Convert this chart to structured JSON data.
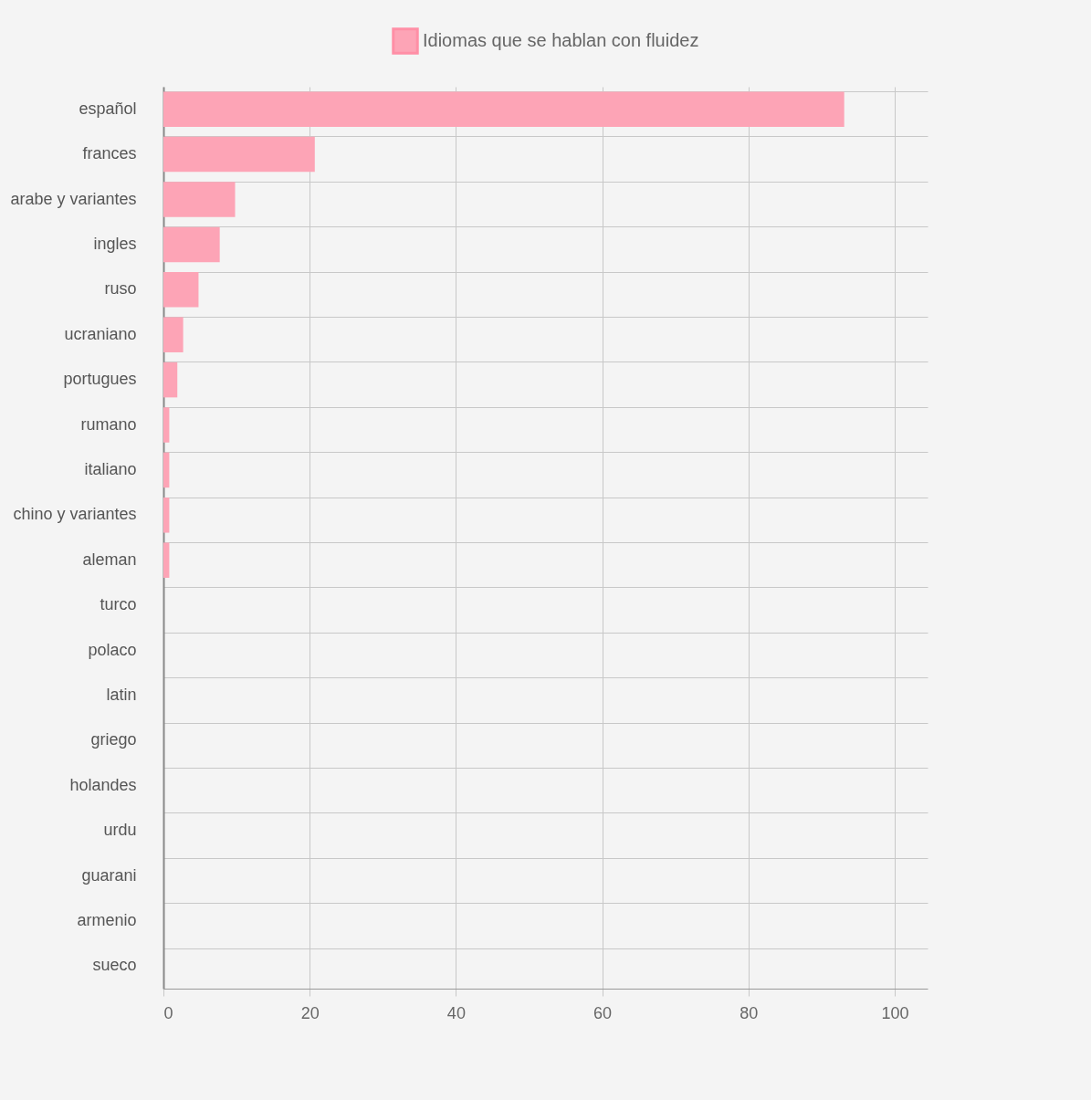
{
  "chart_data": {
    "type": "bar",
    "orientation": "horizontal",
    "categories": [
      "español",
      "frances",
      "arabe y variantes",
      "ingles",
      "ruso",
      "ucraniano",
      "portugues",
      "rumano",
      "italiano",
      "chino y variantes",
      "aleman",
      "turco",
      "polaco",
      "latin",
      "griego",
      "holandes",
      "urdu",
      "guarani",
      "armenio",
      "sueco"
    ],
    "series": [
      {
        "name": "Idiomas que se hablan con fluidez",
        "color": "#fda4b6",
        "values": [
          93.1,
          20.7,
          9.8,
          7.7,
          4.8,
          2.7,
          1.9,
          0.8,
          0.8,
          0.8,
          0.8,
          0,
          0,
          0,
          0,
          0,
          0,
          0,
          0,
          0
        ]
      }
    ],
    "xlim": [
      0,
      104.5
    ],
    "xticks": [
      0,
      20,
      40,
      60,
      80,
      100
    ],
    "grid": true,
    "legend": "top"
  }
}
